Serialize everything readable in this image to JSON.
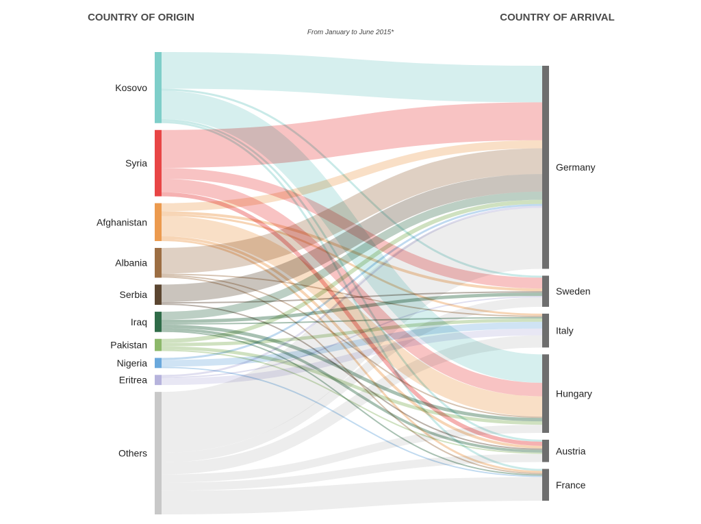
{
  "header": {
    "origin_title": "COUNTRY OF ORIGIN",
    "arrival_title": "COUNTRY OF ARRIVAL",
    "subtitle": "From January to June 2015*"
  },
  "origins": [
    {
      "id": "kosovo",
      "label": "Kosovo",
      "color": "#7ecec9"
    },
    {
      "id": "syria",
      "label": "Syria",
      "color": "#e84545"
    },
    {
      "id": "afghanistan",
      "label": "Afghanistan",
      "color": "#ec9a4e"
    },
    {
      "id": "albania",
      "label": "Albania",
      "color": "#9c6e43"
    },
    {
      "id": "serbia",
      "label": "Serbia",
      "color": "#5b4631"
    },
    {
      "id": "iraq",
      "label": "Iraq",
      "color": "#2f6b48"
    },
    {
      "id": "pakistan",
      "label": "Pakistan",
      "color": "#8cb86a"
    },
    {
      "id": "nigeria",
      "label": "Nigeria",
      "color": "#6aa8dc"
    },
    {
      "id": "eritrea",
      "label": "Eritrea",
      "color": "#b6b3dc"
    },
    {
      "id": "others",
      "label": "Others",
      "color": "#c8c8c8"
    }
  ],
  "destinations": [
    {
      "id": "germany",
      "label": "Germany",
      "color": "#6e6e6e"
    },
    {
      "id": "sweden",
      "label": "Sweden",
      "color": "#6e6e6e"
    },
    {
      "id": "italy",
      "label": "Italy",
      "color": "#6e6e6e"
    },
    {
      "id": "hungary",
      "label": "Hungary",
      "color": "#6e6e6e"
    },
    {
      "id": "austria",
      "label": "Austria",
      "color": "#6e6e6e"
    },
    {
      "id": "france",
      "label": "France",
      "color": "#6e6e6e"
    }
  ],
  "flows": [
    {
      "from": "kosovo",
      "to": "germany",
      "value": 54
    },
    {
      "from": "kosovo",
      "to": "hungary",
      "value": 42
    },
    {
      "from": "kosovo",
      "to": "sweden",
      "value": 3
    },
    {
      "from": "kosovo",
      "to": "austria",
      "value": 3
    },
    {
      "from": "kosovo",
      "to": "france",
      "value": 3
    },
    {
      "from": "syria",
      "to": "germany",
      "value": 56
    },
    {
      "from": "syria",
      "to": "hungary",
      "value": 20
    },
    {
      "from": "syria",
      "to": "sweden",
      "value": 16
    },
    {
      "from": "syria",
      "to": "austria",
      "value": 6
    },
    {
      "from": "afghanistan",
      "to": "germany",
      "value": 12
    },
    {
      "from": "afghanistan",
      "to": "hungary",
      "value": 30
    },
    {
      "from": "afghanistan",
      "to": "sweden",
      "value": 4
    },
    {
      "from": "afghanistan",
      "to": "austria",
      "value": 4
    },
    {
      "from": "afghanistan",
      "to": "italy",
      "value": 3
    },
    {
      "from": "afghanistan",
      "to": "france",
      "value": 3
    },
    {
      "from": "albania",
      "to": "germany",
      "value": 38
    },
    {
      "from": "albania",
      "to": "italy",
      "value": 2
    },
    {
      "from": "albania",
      "to": "hungary",
      "value": 2
    },
    {
      "from": "albania",
      "to": "france",
      "value": 2
    },
    {
      "from": "serbia",
      "to": "germany",
      "value": 26
    },
    {
      "from": "serbia",
      "to": "sweden",
      "value": 2
    },
    {
      "from": "serbia",
      "to": "austria",
      "value": 2
    },
    {
      "from": "iraq",
      "to": "germany",
      "value": 12
    },
    {
      "from": "iraq",
      "to": "sweden",
      "value": 5
    },
    {
      "from": "iraq",
      "to": "hungary",
      "value": 5
    },
    {
      "from": "iraq",
      "to": "austria",
      "value": 4
    },
    {
      "from": "iraq",
      "to": "italy",
      "value": 2
    },
    {
      "from": "iraq",
      "to": "france",
      "value": 2
    },
    {
      "from": "pakistan",
      "to": "germany",
      "value": 6
    },
    {
      "from": "pakistan",
      "to": "italy",
      "value": 5
    },
    {
      "from": "pakistan",
      "to": "hungary",
      "value": 5
    },
    {
      "from": "pakistan",
      "to": "austria",
      "value": 2
    },
    {
      "from": "nigeria",
      "to": "italy",
      "value": 10
    },
    {
      "from": "nigeria",
      "to": "germany",
      "value": 3
    },
    {
      "from": "nigeria",
      "to": "france",
      "value": 2
    },
    {
      "from": "eritrea",
      "to": "italy",
      "value": 10
    },
    {
      "from": "eritrea",
      "to": "germany",
      "value": 3
    },
    {
      "from": "eritrea",
      "to": "sweden",
      "value": 2
    },
    {
      "from": "others",
      "to": "germany",
      "value": 90
    },
    {
      "from": "others",
      "to": "italy",
      "value": 18
    },
    {
      "from": "others",
      "to": "france",
      "value": 35
    },
    {
      "from": "others",
      "to": "hungary",
      "value": 12
    },
    {
      "from": "others",
      "to": "sweden",
      "value": 14
    },
    {
      "from": "others",
      "to": "austria",
      "value": 12
    }
  ]
}
